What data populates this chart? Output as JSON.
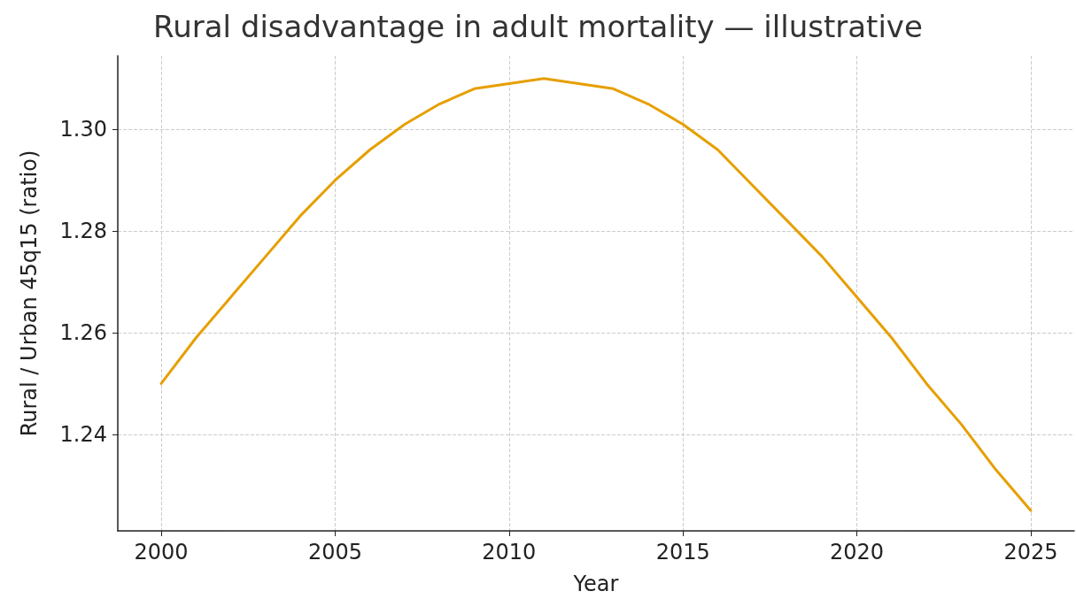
{
  "chart_data": {
    "type": "line",
    "title": "Rural disadvantage in adult mortality — illustrative",
    "xlabel": "Year",
    "ylabel": "Rural / Urban 45q15 (ratio)",
    "x": [
      2000,
      2001,
      2002,
      2003,
      2004,
      2005,
      2006,
      2007,
      2008,
      2009,
      2010,
      2011,
      2012,
      2013,
      2014,
      2015,
      2016,
      2017,
      2018,
      2019,
      2020,
      2021,
      2022,
      2023,
      2024,
      2025
    ],
    "series": [
      {
        "color": "#e69f00",
        "values": [
          1.25,
          1.259,
          1.267,
          1.275,
          1.283,
          1.29,
          1.296,
          1.301,
          1.305,
          1.308,
          1.309,
          1.31,
          1.309,
          1.308,
          1.305,
          1.301,
          1.296,
          1.289,
          1.282,
          1.275,
          1.267,
          1.259,
          1.25,
          1.242,
          1.233,
          1.225
        ]
      }
    ],
    "xlim": [
      1998.75,
      2026.25
    ],
    "xticks": [
      2000,
      2005,
      2010,
      2015,
      2020,
      2025
    ],
    "ylim": [
      1.221,
      1.3145
    ],
    "yticks": [
      1.24,
      1.26,
      1.28,
      {
        "value": 1.3,
        "label": "1.30"
      }
    ],
    "grid": true,
    "marker": "none",
    "line_style": "solid"
  }
}
